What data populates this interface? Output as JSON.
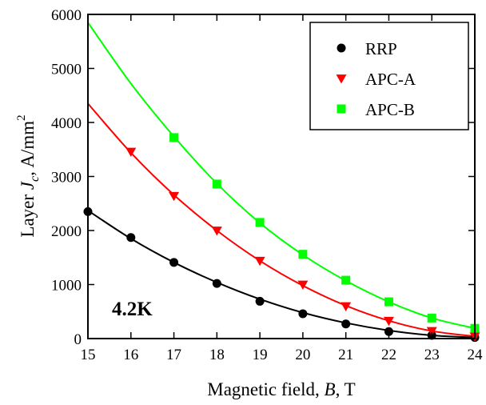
{
  "chart_data": {
    "type": "scatter",
    "xlabel": {
      "prefix": "Magnetic field, ",
      "symbol": "B",
      "suffix": ", T"
    },
    "ylabel": {
      "prefix": "Layer ",
      "symbol": "J",
      "subscript": "c",
      "suffix": ", A/mm",
      "superscript": "2"
    },
    "xlim": [
      15,
      24
    ],
    "ylim": [
      0,
      6000
    ],
    "x_ticks": [
      "15",
      "16",
      "17",
      "18",
      "19",
      "20",
      "21",
      "22",
      "23",
      "24"
    ],
    "y_ticks": [
      "0",
      "1000",
      "2000",
      "3000",
      "4000",
      "5000",
      "6000"
    ],
    "grid": false,
    "legend_position": "top-right",
    "annotation": "4.2K",
    "series": [
      {
        "name": "RRP",
        "marker": "circle",
        "color": "#000000",
        "points": [
          [
            15,
            2350
          ],
          [
            16,
            1870
          ],
          [
            17,
            1410
          ],
          [
            18,
            1020
          ],
          [
            19,
            690
          ],
          [
            20,
            460
          ],
          [
            21,
            270
          ],
          [
            22,
            130
          ],
          [
            23,
            60
          ],
          [
            24,
            20
          ]
        ],
        "curve": [
          [
            15,
            2370
          ],
          [
            16,
            1850
          ],
          [
            17,
            1410
          ],
          [
            18,
            1040
          ],
          [
            19,
            730
          ],
          [
            20,
            480
          ],
          [
            21,
            290
          ],
          [
            22,
            150
          ],
          [
            23,
            60
          ],
          [
            24,
            20
          ]
        ]
      },
      {
        "name": "APC-A",
        "marker": "triangle-down",
        "color": "#ff0000",
        "points": [
          [
            16,
            3460
          ],
          [
            17,
            2640
          ],
          [
            18,
            2000
          ],
          [
            19,
            1440
          ],
          [
            20,
            1000
          ],
          [
            21,
            600
          ],
          [
            22,
            330
          ],
          [
            23,
            140
          ],
          [
            24,
            40
          ]
        ],
        "curve": [
          [
            15,
            4350
          ],
          [
            16,
            3440
          ],
          [
            17,
            2660
          ],
          [
            18,
            2000
          ],
          [
            19,
            1440
          ],
          [
            20,
            980
          ],
          [
            21,
            610
          ],
          [
            22,
            330
          ],
          [
            23,
            140
          ],
          [
            24,
            40
          ]
        ]
      },
      {
        "name": "APC-B",
        "marker": "square",
        "color": "#00ff00",
        "points": [
          [
            17,
            3720
          ],
          [
            18,
            2860
          ],
          [
            19,
            2150
          ],
          [
            20,
            1560
          ],
          [
            21,
            1080
          ],
          [
            22,
            680
          ],
          [
            23,
            380
          ],
          [
            24,
            190
          ]
        ],
        "curve": [
          [
            15,
            5850
          ],
          [
            16,
            4720
          ],
          [
            17,
            3740
          ],
          [
            18,
            2870
          ],
          [
            19,
            2140
          ],
          [
            20,
            1550
          ],
          [
            21,
            1070
          ],
          [
            22,
            680
          ],
          [
            23,
            380
          ],
          [
            24,
            190
          ]
        ]
      }
    ]
  }
}
